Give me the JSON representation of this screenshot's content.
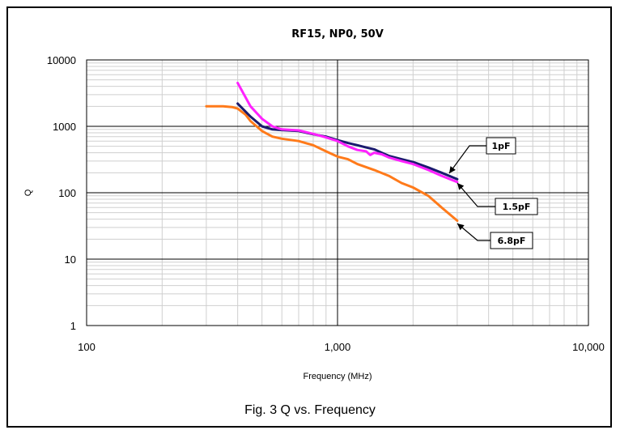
{
  "colors": {
    "series_1pF": "#1a1a6e",
    "series_1_5pF": "#ff22ff",
    "series_6_8pF": "#ff7a1a",
    "grid_minor": "#cfcfcf",
    "grid_major": "#000000"
  },
  "caption": "Fig. 3 Q vs. Frequency",
  "chart_data": {
    "type": "line",
    "title": "RF15, NP0, 50V",
    "xlabel": "Frequency (MHz)",
    "ylabel": "Q",
    "xscale": "log",
    "yscale": "log",
    "xlim": [
      100,
      10000
    ],
    "ylim": [
      1,
      10000
    ],
    "x_ticks": [
      {
        "value": 100,
        "label": "100"
      },
      {
        "value": 1000,
        "label": "1,000"
      },
      {
        "value": 10000,
        "label": "10,000"
      }
    ],
    "y_ticks": [
      {
        "value": 1,
        "label": "1"
      },
      {
        "value": 10,
        "label": "10"
      },
      {
        "value": 100,
        "label": "100"
      },
      {
        "value": 1000,
        "label": "1000"
      },
      {
        "value": 10000,
        "label": "10000"
      }
    ],
    "grid": true,
    "series": [
      {
        "name": "1pF",
        "color_key": "series_1pF",
        "x": [
          400,
          450,
          500,
          550,
          600,
          700,
          800,
          900,
          1000,
          1100,
          1200,
          1300,
          1400,
          1500,
          1600,
          1800,
          2000,
          2300,
          2600,
          3000
        ],
        "y": [
          2200,
          1400,
          1000,
          900,
          880,
          850,
          760,
          700,
          620,
          560,
          520,
          480,
          450,
          400,
          360,
          320,
          290,
          240,
          200,
          160
        ]
      },
      {
        "name": "1.5pF",
        "color_key": "series_1_5pF",
        "x": [
          400,
          450,
          500,
          550,
          600,
          700,
          800,
          900,
          1000,
          1100,
          1200,
          1300,
          1350,
          1400,
          1500,
          1600,
          1800,
          2000,
          2300,
          2600,
          3000
        ],
        "y": [
          4500,
          2000,
          1300,
          1000,
          900,
          870,
          770,
          680,
          600,
          500,
          440,
          420,
          370,
          400,
          380,
          340,
          300,
          270,
          220,
          180,
          145
        ]
      },
      {
        "name": "6.8pF",
        "color_key": "series_6_8pF",
        "x": [
          300,
          350,
          380,
          400,
          430,
          450,
          500,
          550,
          600,
          700,
          800,
          900,
          1000,
          1100,
          1200,
          1400,
          1600,
          1800,
          2000,
          2300,
          2600,
          3000
        ],
        "y": [
          2000,
          2000,
          1950,
          1850,
          1500,
          1200,
          850,
          700,
          650,
          600,
          520,
          420,
          350,
          320,
          270,
          220,
          180,
          140,
          120,
          90,
          60,
          38
        ]
      }
    ],
    "annotations": [
      {
        "text": "1pF",
        "points_to_series": "1pF"
      },
      {
        "text": "1.5pF",
        "points_to_series": "1.5pF"
      },
      {
        "text": "6.8pF",
        "points_to_series": "6.8pF"
      }
    ]
  }
}
